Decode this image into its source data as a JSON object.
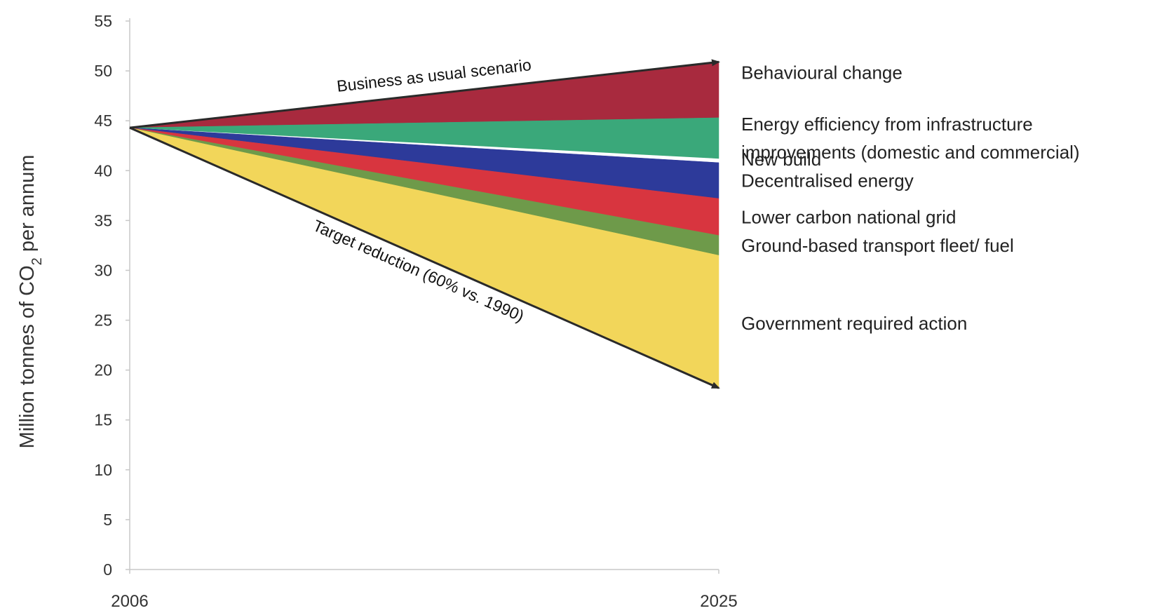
{
  "chart_data": {
    "type": "area",
    "x": [
      2006,
      2025
    ],
    "ylabel": "Million tonnes of CO2 per annum",
    "ylabel_parts": [
      "Million tonnes of CO",
      "2",
      " per annum"
    ],
    "ylim": [
      0,
      55
    ],
    "yticks": [
      0,
      5,
      10,
      15,
      20,
      25,
      30,
      35,
      40,
      45,
      50,
      55
    ],
    "xticks": [
      "2006",
      "2025"
    ],
    "start_value": 44.3,
    "bands": [
      {
        "name": "Behavioural change",
        "lines": [
          "Behavioural change"
        ],
        "start": 44.3,
        "from": 45.3,
        "to": 50.9,
        "color": "#a82a3e"
      },
      {
        "name": "Energy efficiency from infrastructure improvements (domestic and commercial)",
        "lines": [
          "Energy efficiency from infrastructure",
          "improvements (domestic and commercial)"
        ],
        "start": 44.3,
        "from": 41.2,
        "to": 45.3,
        "color": "#3aa87a"
      },
      {
        "name": "New build",
        "lines": [
          "New build"
        ],
        "start": 44.3,
        "from": 40.8,
        "to": 41.2,
        "color": "#ffffff"
      },
      {
        "name": "Decentralised energy",
        "lines": [
          "Decentralised energy"
        ],
        "start": 44.3,
        "from": 37.2,
        "to": 40.8,
        "color": "#2d3a9a"
      },
      {
        "name": "Lower carbon national grid",
        "lines": [
          "Lower carbon national grid"
        ],
        "start": 44.3,
        "from": 33.5,
        "to": 37.2,
        "color": "#d8353f"
      },
      {
        "name": "Ground-based transport fleet/ fuel",
        "lines": [
          "Ground-based transport fleet/ fuel"
        ],
        "start": 44.3,
        "from": 31.5,
        "to": 33.5,
        "color": "#6e9a4a"
      },
      {
        "name": "Government required action",
        "lines": [
          "Government required action"
        ],
        "start": 44.3,
        "from": 18.2,
        "to": 31.5,
        "color": "#f2d65a"
      }
    ],
    "annotations": [
      {
        "text": "Business as usual scenario",
        "from": 44.3,
        "to": 50.9
      },
      {
        "text": "Target reduction (60% vs. 1990)",
        "from": 44.3,
        "to": 18.2
      }
    ]
  }
}
